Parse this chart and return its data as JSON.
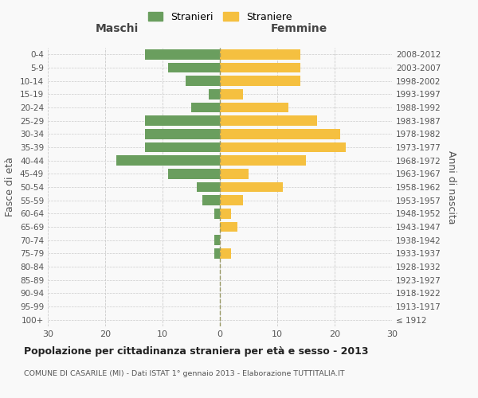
{
  "age_groups": [
    "100+",
    "95-99",
    "90-94",
    "85-89",
    "80-84",
    "75-79",
    "70-74",
    "65-69",
    "60-64",
    "55-59",
    "50-54",
    "45-49",
    "40-44",
    "35-39",
    "30-34",
    "25-29",
    "20-24",
    "15-19",
    "10-14",
    "5-9",
    "0-4"
  ],
  "birth_years": [
    "≤ 1912",
    "1913-1917",
    "1918-1922",
    "1923-1927",
    "1928-1932",
    "1933-1937",
    "1938-1942",
    "1943-1947",
    "1948-1952",
    "1953-1957",
    "1958-1962",
    "1963-1967",
    "1968-1972",
    "1973-1977",
    "1978-1982",
    "1983-1987",
    "1988-1992",
    "1993-1997",
    "1998-2002",
    "2003-2007",
    "2008-2012"
  ],
  "males": [
    0,
    0,
    0,
    0,
    0,
    1,
    1,
    0,
    1,
    3,
    4,
    9,
    18,
    13,
    13,
    13,
    5,
    2,
    6,
    9,
    13
  ],
  "females": [
    0,
    0,
    0,
    0,
    0,
    2,
    0,
    3,
    2,
    4,
    11,
    5,
    15,
    22,
    21,
    17,
    12,
    4,
    14,
    14,
    14
  ],
  "male_color": "#6a9e5e",
  "female_color": "#f5c040",
  "grid_color": "#cccccc",
  "center_line_color": "#999966",
  "xlim": 30,
  "title": "Popolazione per cittadinanza straniera per età e sesso - 2013",
  "subtitle": "COMUNE DI CASARILE (MI) - Dati ISTAT 1° gennaio 2013 - Elaborazione TUTTITALIA.IT",
  "ylabel_left": "Fasce di età",
  "ylabel_right": "Anni di nascita",
  "header_left": "Maschi",
  "header_right": "Femmine",
  "legend_stranieri": "Stranieri",
  "legend_straniere": "Straniere",
  "background_color": "#f9f9f9"
}
